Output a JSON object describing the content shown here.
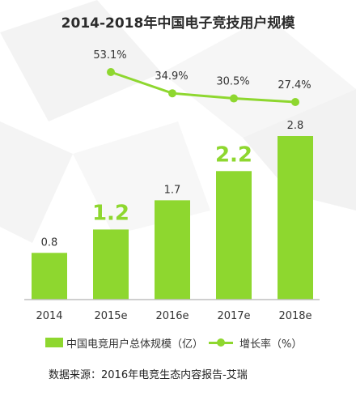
{
  "title": "2014-2018年中国电子竞技用户规模",
  "source": "数据来源：2016年电竞生态内容报告-艾瑞",
  "colors": {
    "bar": "#8ed72f",
    "line": "#8ed72f",
    "axis": "#bfbfbf",
    "text": "#333333"
  },
  "chart_data": {
    "type": "bar",
    "title": "2014-2018年中国电子竞技用户规模",
    "categories": [
      "2014",
      "2015e",
      "2016e",
      "2017e",
      "2018e"
    ],
    "series": [
      {
        "name": "中国电竞用户总体规模（亿）",
        "type": "bar",
        "values": [
          0.8,
          1.2,
          1.7,
          2.2,
          2.8
        ],
        "labels": [
          "0.8",
          "1.2",
          "1.7",
          "2.2",
          "2.8"
        ],
        "emphasized": [
          false,
          true,
          false,
          true,
          false
        ]
      },
      {
        "name": "增长率（%）",
        "type": "line",
        "x": [
          "2015e",
          "2016e",
          "2017e",
          "2018e"
        ],
        "values": [
          53.1,
          34.9,
          30.5,
          27.4
        ],
        "labels": [
          "53.1%",
          "34.9%",
          "30.5%",
          "27.4%"
        ]
      }
    ],
    "ylim": [
      0,
      3.0
    ],
    "ylim_secondary": [
      0,
      60
    ],
    "grid": false,
    "legend": "bottom"
  }
}
